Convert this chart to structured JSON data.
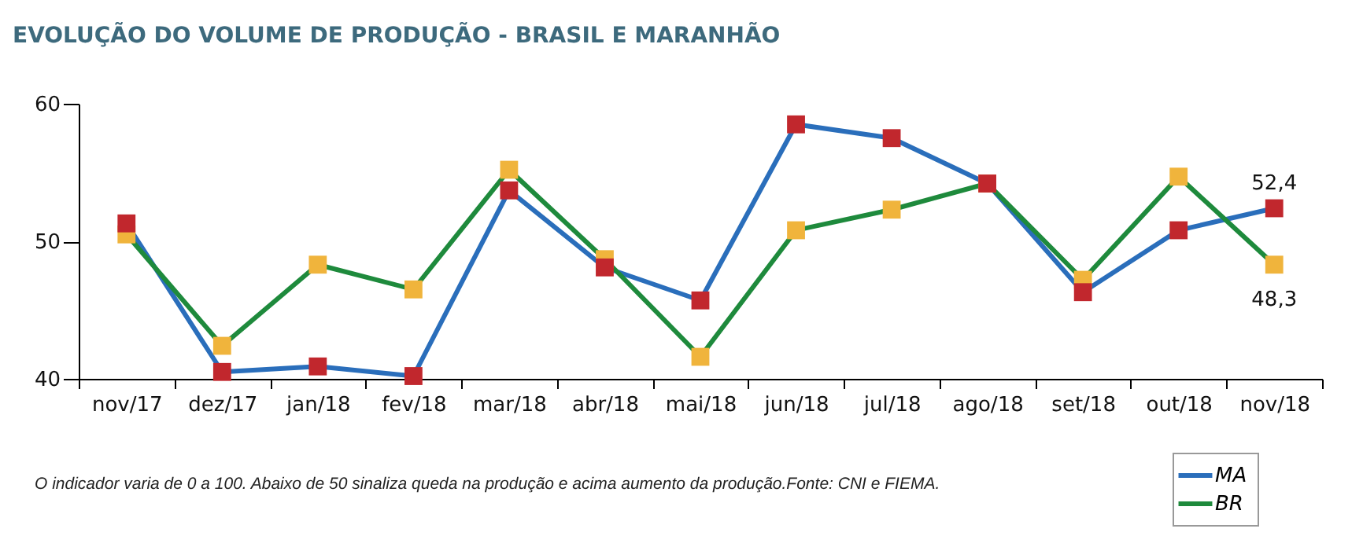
{
  "chart_data": {
    "type": "line",
    "title": "EVOLUÇÃO DO VOLUME DE PRODUÇÃO - BRASIL E MARANHÃO",
    "categories": [
      "nov/17",
      "dez/17",
      "jan/18",
      "fev/18",
      "mar/18",
      "abr/18",
      "mai/18",
      "jun/18",
      "jul/18",
      "ago/18",
      "set/18",
      "out/18",
      "nov/18"
    ],
    "series": [
      {
        "name": "MA",
        "color": "#2a6ebb",
        "colors": [
          "#c1272d",
          "#c1272d",
          "#c1272d",
          "#c1272d",
          "#c1272d",
          "#c1272d",
          "#c1272d",
          "#c1272d",
          "#c1272d",
          "#c1272d",
          "#c1272d",
          "#c1272d",
          "#c1272d"
        ],
        "values": [
          51.3,
          40.5,
          40.9,
          40.2,
          53.7,
          48.1,
          45.7,
          58.5,
          57.5,
          54.2,
          46.3,
          50.8,
          52.4
        ],
        "value_labels": [
          null,
          null,
          null,
          null,
          null,
          null,
          null,
          null,
          null,
          null,
          null,
          null,
          "52,4"
        ]
      },
      {
        "name": "BR",
        "color": "#1e8a3c",
        "colors": [
          "#f0b43c",
          "#f0b43c",
          "#f0b43c",
          "#f0b43c",
          "#f0b43c",
          "#f0b43c",
          "#f0b43c",
          "#f0b43c",
          "#f0b43c",
          "#f0b43c",
          "#f0b43c",
          "#f0b43c",
          "#f0b43c"
        ],
        "values": [
          50.5,
          42.4,
          48.3,
          46.5,
          55.2,
          48.7,
          41.6,
          50.8,
          52.3,
          54.2,
          47.2,
          54.7,
          48.3
        ],
        "value_labels": [
          null,
          null,
          null,
          null,
          null,
          null,
          null,
          null,
          null,
          null,
          null,
          null,
          "48,3"
        ]
      }
    ],
    "ylim": [
      40,
      60
    ],
    "yticks": [
      40,
      50,
      60
    ],
    "grid": false,
    "legend": "bottom right",
    "marker": "square",
    "line_style": "solid",
    "annotations": [
      "O indicador varia de 0 a 100. Abaixo de 50 sinaliza queda na produção e acima aumento da produção.Fonte: CNI e FIEMA."
    ]
  }
}
